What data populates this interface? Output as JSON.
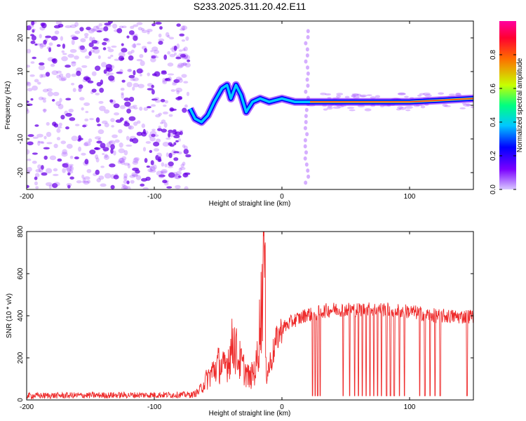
{
  "title": "S233.2025.311.20.42.E11",
  "colors": {
    "snr_line": "#ee2b2b",
    "dots": "#a24cff",
    "dots_dark": "#6a00e6",
    "frame": "#000000"
  },
  "chart_data": [
    {
      "type": "heatmap",
      "xlabel": "Height of straight line (km)",
      "ylabel": "Frequency (Hz)",
      "xlim": [
        -200,
        150
      ],
      "ylim": [
        -25,
        25
      ],
      "x_ticks": [
        -200,
        -100,
        0,
        100
      ],
      "y_ticks": [
        20,
        10,
        0,
        -10,
        -20
      ],
      "colorbar": {
        "label": "Normalized spectral amplitude",
        "range": [
          0,
          1
        ],
        "ticks": [
          "0.0",
          "0.2",
          "0.4",
          "0.6",
          "0.8"
        ],
        "tick_values": [
          0.0,
          0.2,
          0.4,
          0.6,
          0.8
        ],
        "colormap": "rainbow",
        "stops": [
          "#d9c8ff",
          "#7a00ff",
          "#0000ff",
          "#00c8ff",
          "#00ff80",
          "#c8ff00",
          "#ff6a00",
          "#ff0030",
          "#ff00a0"
        ]
      },
      "features": {
        "noise_region_x": [
          -200,
          -73
        ],
        "ridge": [
          {
            "x": -72,
            "f": -1
          },
          {
            "x": -68,
            "f": -4
          },
          {
            "x": -63,
            "f": -5
          },
          {
            "x": -58,
            "f": -3
          },
          {
            "x": -53,
            "f": 1
          },
          {
            "x": -47,
            "f": 5
          },
          {
            "x": -43,
            "f": 6
          },
          {
            "x": -40,
            "f": 2
          },
          {
            "x": -36,
            "f": 6
          },
          {
            "x": -32,
            "f": 3
          },
          {
            "x": -28,
            "f": -2
          },
          {
            "x": -23,
            "f": 1
          },
          {
            "x": -17,
            "f": 2
          },
          {
            "x": -10,
            "f": 1
          },
          {
            "x": 0,
            "f": 2
          },
          {
            "x": 10,
            "f": 1
          },
          {
            "x": 17,
            "f": 1
          },
          {
            "x": 22,
            "f": 1
          },
          {
            "x": 60,
            "f": 1
          },
          {
            "x": 100,
            "f": 1
          },
          {
            "x": 150,
            "f": 2
          }
        ],
        "vertical_streak_x": [
          18,
          25
        ]
      }
    },
    {
      "type": "line",
      "xlabel": "Height of straight line (km)",
      "ylabel": "SNR (10 * v/v)",
      "xlim": [
        -200,
        150
      ],
      "ylim": [
        0,
        800
      ],
      "x_ticks": [
        -200,
        -100,
        0,
        100
      ],
      "y_ticks": [
        0,
        200,
        400,
        600,
        800
      ],
      "envelope": [
        {
          "x": -200,
          "y": 20
        },
        {
          "x": -70,
          "y": 25
        },
        {
          "x": -65,
          "y": 40
        },
        {
          "x": -60,
          "y": 90
        },
        {
          "x": -55,
          "y": 130
        },
        {
          "x": -50,
          "y": 170
        },
        {
          "x": -45,
          "y": 150
        },
        {
          "x": -40,
          "y": 230
        },
        {
          "x": -38,
          "y": 290
        },
        {
          "x": -35,
          "y": 210
        },
        {
          "x": -30,
          "y": 150
        },
        {
          "x": -25,
          "y": 100
        },
        {
          "x": -20,
          "y": 160
        },
        {
          "x": -16,
          "y": 450
        },
        {
          "x": -14,
          "y": 780
        },
        {
          "x": -12,
          "y": 120
        },
        {
          "x": -8,
          "y": 200
        },
        {
          "x": -4,
          "y": 290
        },
        {
          "x": 0,
          "y": 340
        },
        {
          "x": 5,
          "y": 360
        },
        {
          "x": 10,
          "y": 380
        },
        {
          "x": 15,
          "y": 390
        },
        {
          "x": 20,
          "y": 410
        },
        {
          "x": 25,
          "y": 400
        },
        {
          "x": 30,
          "y": 420
        },
        {
          "x": 40,
          "y": 430
        },
        {
          "x": 60,
          "y": 430
        },
        {
          "x": 80,
          "y": 430
        },
        {
          "x": 100,
          "y": 420
        },
        {
          "x": 120,
          "y": 400
        },
        {
          "x": 140,
          "y": 395
        },
        {
          "x": 150,
          "y": 400
        }
      ],
      "dropouts_x": [
        24,
        26,
        28,
        30,
        48,
        53,
        57,
        60,
        63,
        66,
        69,
        72,
        75,
        78,
        82,
        85,
        88,
        92,
        96,
        108,
        112,
        116,
        120,
        124,
        145
      ]
    }
  ]
}
